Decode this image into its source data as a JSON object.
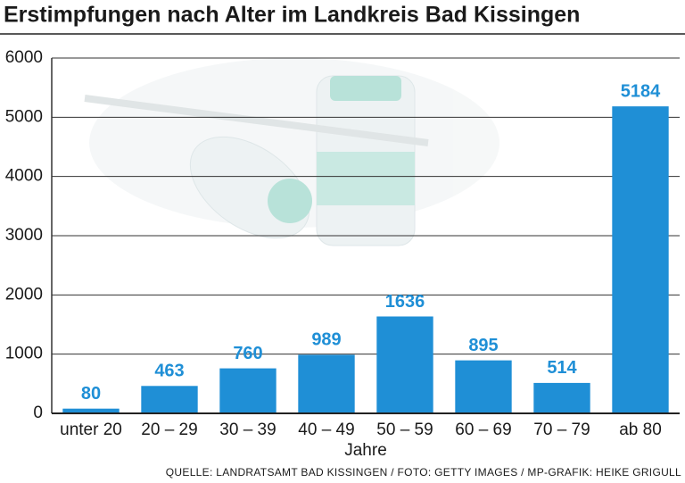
{
  "chart_data": {
    "type": "bar",
    "title": "Erstimpfungen nach Alter im Landkreis Bad Kissingen",
    "x_label": "Jahre",
    "source": "QUELLE: LANDRATSAMT BAD KISSINGEN / FOTO: GETTY IMAGES / MP-GRAFIK: HEIKE GRIGULL",
    "categories": [
      "unter 20",
      "20 – 29",
      "30 – 39",
      "40 – 49",
      "50 – 59",
      "60 – 69",
      "70 – 79",
      "ab 80"
    ],
    "values": [
      80,
      463,
      760,
      989,
      1636,
      895,
      514,
      5184
    ],
    "color": "#1f8fd6",
    "ylim": [
      0,
      6000
    ],
    "yticks": [
      0,
      1000,
      2000,
      3000,
      4000,
      5000,
      6000
    ],
    "grid": true
  }
}
